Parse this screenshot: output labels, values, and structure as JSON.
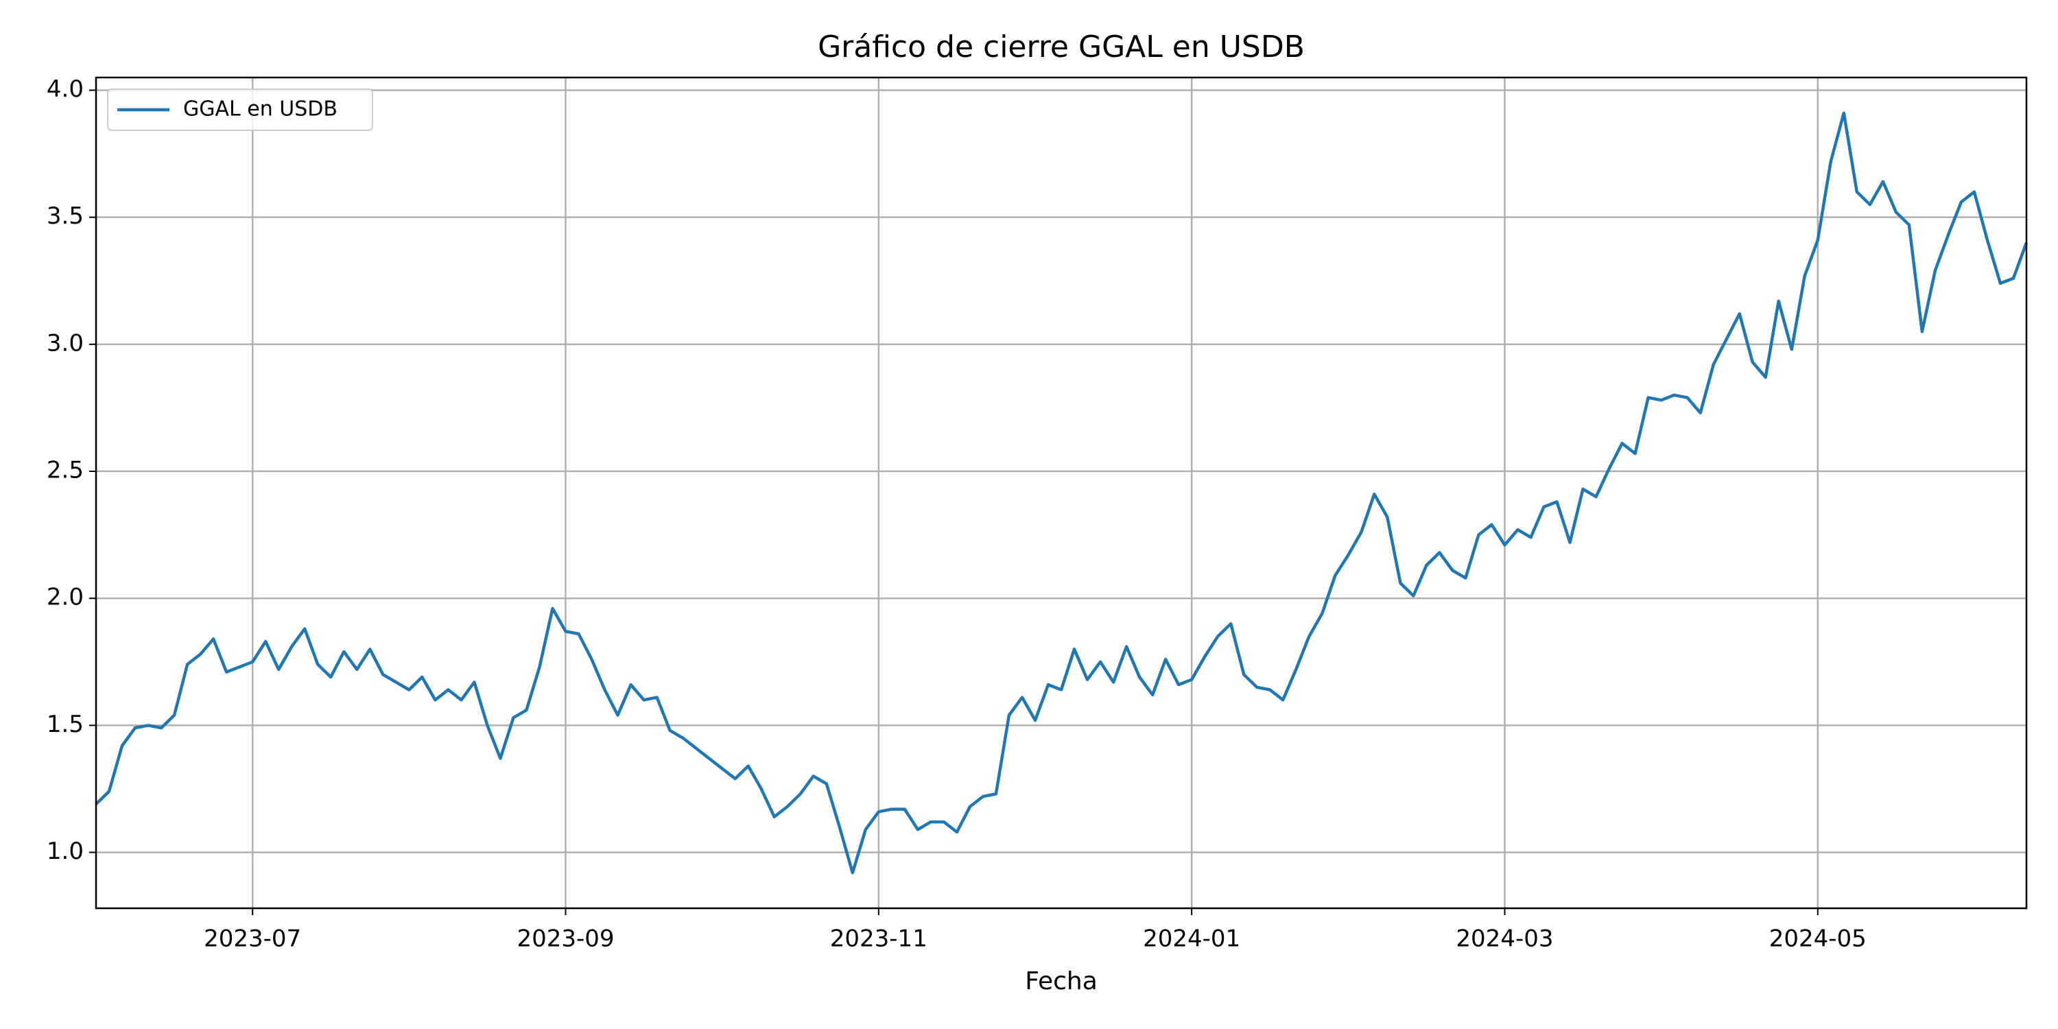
{
  "chart_data": {
    "type": "line",
    "title": "Gráfico de cierre GGAL en USDB",
    "xlabel": "Fecha",
    "x": [
      "2023-06",
      "2023-06",
      "2023-06",
      "2023-06",
      "2023-06",
      "2023-06",
      "2023-06",
      "2023-06",
      "2023-06",
      "2023-06",
      "2023-06",
      "2023-07",
      "2023-07",
      "2023-07",
      "2023-07",
      "2023-07",
      "2023-07",
      "2023-07",
      "2023-07",
      "2023-07",
      "2023-07",
      "2023-07",
      "2023-08",
      "2023-08",
      "2023-08",
      "2023-08",
      "2023-08",
      "2023-08",
      "2023-08",
      "2023-08",
      "2023-08",
      "2023-08",
      "2023-08",
      "2023-08",
      "2023-09",
      "2023-09",
      "2023-09",
      "2023-09",
      "2023-09",
      "2023-09",
      "2023-09",
      "2023-09",
      "2023-09",
      "2023-09",
      "2023-09",
      "2023-10",
      "2023-10",
      "2023-10",
      "2023-10",
      "2023-10",
      "2023-10",
      "2023-10",
      "2023-10",
      "2023-10",
      "2023-10",
      "2023-10",
      "2023-10",
      "2023-11",
      "2023-11",
      "2023-11",
      "2023-11",
      "2023-11",
      "2023-11",
      "2023-11",
      "2023-11",
      "2023-11",
      "2023-11",
      "2023-11",
      "2023-11",
      "2023-12",
      "2023-12",
      "2023-12",
      "2023-12",
      "2023-12",
      "2023-12",
      "2023-12",
      "2023-12",
      "2023-12",
      "2023-12",
      "2023-12",
      "2023-12",
      "2024-01",
      "2024-01",
      "2024-01",
      "2024-01",
      "2024-01",
      "2024-01",
      "2024-01",
      "2024-01",
      "2024-01",
      "2024-01",
      "2024-01",
      "2024-01",
      "2024-02",
      "2024-02",
      "2024-02",
      "2024-02",
      "2024-02",
      "2024-02",
      "2024-02",
      "2024-02",
      "2024-02",
      "2024-02",
      "2024-02",
      "2024-02",
      "2024-03",
      "2024-03",
      "2024-03",
      "2024-03",
      "2024-03",
      "2024-03",
      "2024-03",
      "2024-03",
      "2024-03",
      "2024-03",
      "2024-03",
      "2024-03",
      "2024-04",
      "2024-04",
      "2024-04",
      "2024-04",
      "2024-04",
      "2024-04",
      "2024-04",
      "2024-04",
      "2024-04",
      "2024-04",
      "2024-04",
      "2024-04",
      "2024-05",
      "2024-05",
      "2024-05",
      "2024-05",
      "2024-05",
      "2024-05",
      "2024-05",
      "2024-05",
      "2024-05",
      "2024-05",
      "2024-05",
      "2024-05",
      "2024-06",
      "2024-06",
      "2024-06",
      "2024-06",
      "2024-06"
    ],
    "series": [
      {
        "name": "GGAL en USDB",
        "color": "#1f77b4",
        "values": [
          1.19,
          1.24,
          1.42,
          1.49,
          1.5,
          1.49,
          1.54,
          1.74,
          1.78,
          1.84,
          1.71,
          1.75,
          1.83,
          1.72,
          1.81,
          1.88,
          1.74,
          1.69,
          1.79,
          1.72,
          1.8,
          1.7,
          1.64,
          1.69,
          1.6,
          1.64,
          1.6,
          1.67,
          1.5,
          1.37,
          1.53,
          1.56,
          1.73,
          1.96,
          1.87,
          1.86,
          1.76,
          1.64,
          1.54,
          1.66,
          1.6,
          1.61,
          1.48,
          1.45,
          1.41,
          1.33,
          1.29,
          1.34,
          1.25,
          1.14,
          1.18,
          1.23,
          1.3,
          1.27,
          1.1,
          0.92,
          1.09,
          1.16,
          1.17,
          1.17,
          1.09,
          1.12,
          1.12,
          1.08,
          1.18,
          1.22,
          1.23,
          1.54,
          1.61,
          1.52,
          1.66,
          1.64,
          1.8,
          1.68,
          1.75,
          1.67,
          1.81,
          1.69,
          1.62,
          1.76,
          1.66,
          1.68,
          1.77,
          1.85,
          1.9,
          1.7,
          1.65,
          1.64,
          1.6,
          1.72,
          1.85,
          1.94,
          2.09,
          2.17,
          2.26,
          2.41,
          2.32,
          2.06,
          2.01,
          2.13,
          2.18,
          2.11,
          2.08,
          2.25,
          2.29,
          2.21,
          2.27,
          2.24,
          2.36,
          2.38,
          2.22,
          2.43,
          2.4,
          2.51,
          2.61,
          2.57,
          2.79,
          2.78,
          2.8,
          2.79,
          2.73,
          2.92,
          3.02,
          3.12,
          2.93,
          2.87,
          3.17,
          2.98,
          3.27,
          3.41,
          3.72,
          3.91,
          3.6,
          3.55,
          3.64,
          3.52,
          3.47,
          3.05,
          3.29,
          3.43,
          3.56,
          3.6,
          3.41,
          3.24,
          3.26,
          3.4
        ]
      }
    ],
    "xticks": [
      "2023-07",
      "2023-09",
      "2023-11",
      "2024-01",
      "2024-03",
      "2024-05"
    ],
    "ylim": [
      0.78,
      4.05
    ],
    "yticks": [
      {
        "value": 1,
        "label": "1.0"
      },
      {
        "value": 1.5,
        "label": "1.5"
      },
      {
        "value": 2,
        "label": "2.0"
      },
      {
        "value": 2.5,
        "label": "2.5"
      },
      {
        "value": 3,
        "label": "3.0"
      },
      {
        "value": 3.5,
        "label": "3.5"
      },
      {
        "value": 4,
        "label": "4.0"
      }
    ],
    "grid": true,
    "legend": "upper left"
  }
}
